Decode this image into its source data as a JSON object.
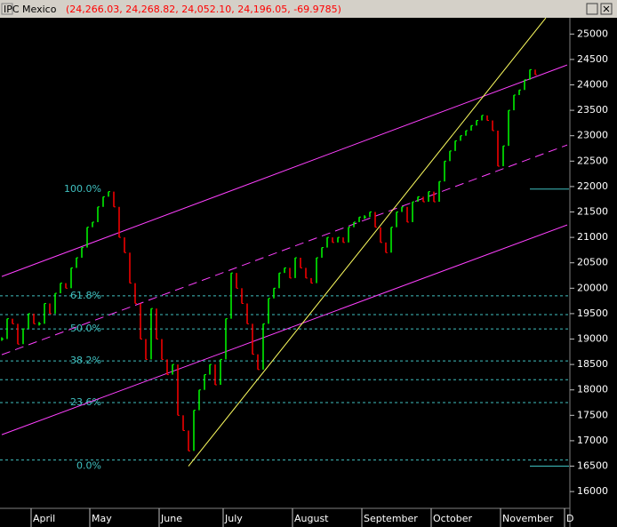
{
  "chart_data": {
    "type": "price-bars",
    "title": "IPC Mexico",
    "subtitle": "(24,266.03, 24,268.82, 24,052.10, 24,196.05, -69.9785)",
    "categories": [
      null,
      null,
      null,
      null,
      null,
      null,
      "April",
      null,
      null,
      null,
      null,
      null,
      null,
      null,
      null,
      null,
      null,
      "May",
      null,
      null,
      null,
      null,
      null,
      null,
      null,
      null,
      null,
      null,
      null,
      null,
      "June",
      null,
      null,
      null,
      null,
      null,
      null,
      null,
      null,
      null,
      null,
      null,
      "July",
      null,
      null,
      null,
      null,
      null,
      null,
      null,
      null,
      null,
      null,
      null,
      null,
      "August",
      null,
      null,
      null,
      null,
      null,
      null,
      null,
      null,
      null,
      null,
      null,
      null,
      "September",
      null,
      null,
      null,
      null,
      null,
      null,
      null,
      null,
      null,
      null,
      null,
      null,
      "October",
      null,
      null,
      null,
      null,
      null,
      null,
      null,
      null,
      null,
      null,
      null,
      null,
      "November",
      null,
      null,
      null,
      null,
      null,
      null,
      null,
      null,
      null,
      null,
      null,
      "D"
    ],
    "values": [
      19000,
      19400,
      19300,
      18900,
      19200,
      19500,
      19300,
      19300,
      19700,
      19500,
      19900,
      20100,
      20000,
      20400,
      20600,
      20800,
      21200,
      21300,
      21600,
      21800,
      21900,
      21600,
      21000,
      20700,
      20100,
      19700,
      19000,
      18600,
      19600,
      19000,
      18600,
      18300,
      18500,
      17500,
      17200,
      16800,
      17600,
      18000,
      18300,
      18500,
      18100,
      18600,
      19400,
      20300,
      20000,
      19700,
      19300,
      18700,
      18400,
      19300,
      19800,
      20000,
      20300,
      20400,
      20200,
      20600,
      20400,
      20200,
      20100,
      20600,
      20800,
      21000,
      20900,
      21000,
      20900,
      21200,
      21300,
      21400,
      21400,
      21500,
      21200,
      20900,
      20700,
      21200,
      21500,
      21600,
      21300,
      21700,
      21800,
      21700,
      21900,
      21700,
      22100,
      22500,
      22700,
      22900,
      23000,
      23100,
      23200,
      23300,
      23400,
      23300,
      23100,
      22400,
      22800,
      23500,
      23800,
      23900,
      24100,
      24300,
      24200,
      null,
      null,
      null,
      null,
      null,
      null
    ],
    "up_color": "#00ff00",
    "down_color": "#ff0000",
    "ylim": [
      15670,
      25320
    ],
    "yticks": [
      16000,
      16500,
      17000,
      17500,
      18000,
      18500,
      19000,
      19500,
      20000,
      20500,
      21000,
      21500,
      22000,
      22500,
      23000,
      23500,
      24000,
      24500,
      25000
    ],
    "fib_levels": [
      {
        "value": 21950,
        "label": "100.0%"
      },
      {
        "value": 19850,
        "label": "61.8%"
      },
      {
        "value": 19200,
        "label": "50.0%"
      },
      {
        "value": 18570,
        "label": "38.2%"
      },
      {
        "value": 17750,
        "label": "23.6%"
      },
      {
        "value": 16500,
        "label": "0.0%"
      }
    ],
    "extra_levels": [
      19480,
      18200,
      16620
    ],
    "level_color": "#40c0c0",
    "trendlines": [
      {
        "color": "#ff40ff",
        "dashed": false,
        "from": [
          0,
          20231
        ],
        "to": [
          106,
          24392
        ]
      },
      {
        "color": "#ff40ff",
        "dashed": true,
        "from": [
          0,
          18692
        ],
        "to": [
          106,
          22818
        ]
      },
      {
        "color": "#ff40ff",
        "dashed": false,
        "from": [
          0,
          17119
        ],
        "to": [
          106,
          21245
        ]
      },
      {
        "color": "#ffff60",
        "dashed": false,
        "from": [
          35,
          16500
        ],
        "to": [
          102,
          25318
        ]
      }
    ]
  }
}
